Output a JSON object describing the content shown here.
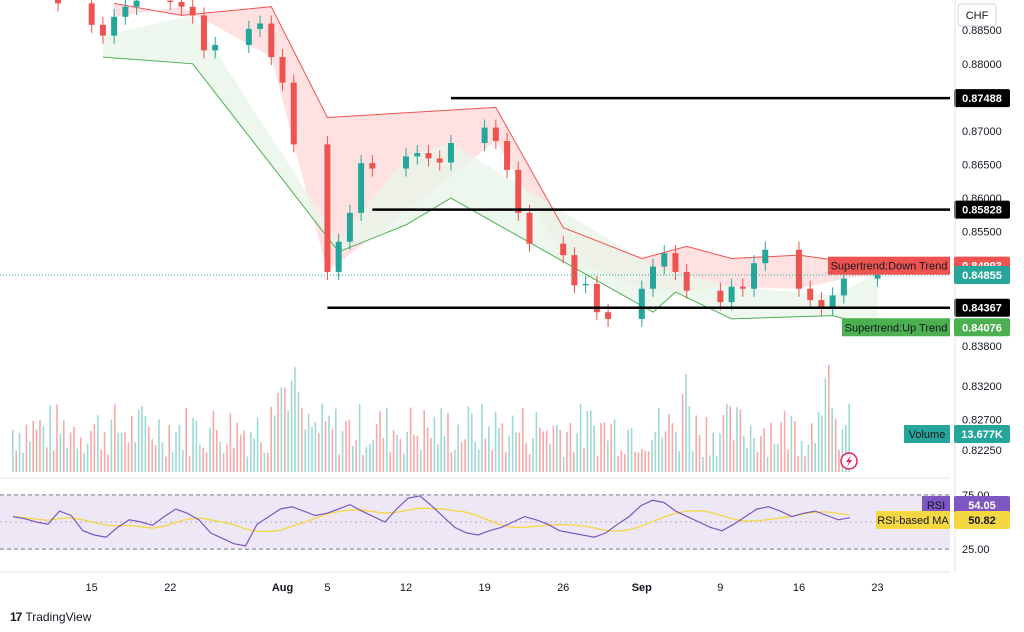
{
  "currency": "CHF",
  "brand": "TradingView",
  "colors": {
    "up": "#26a69a",
    "down": "#ef5350",
    "st_up_line": "#4caf50",
    "st_down_line": "#ef5350",
    "st_up_fill": "#e8f5e9",
    "st_down_fill": "#ffdada",
    "rsi": "#7e57c2",
    "rsi_ma": "#f5d742",
    "rsi_band": "#ede7f6",
    "hline": "#000000",
    "price_dotted": "#26a69a"
  },
  "price_axis": {
    "ticks": [
      "0.88500",
      "0.88000",
      "0.87000",
      "0.86500",
      "0.86000",
      "0.85500",
      "0.83800",
      "0.83200",
      "0.82700",
      "0.82250"
    ],
    "tick_values": [
      0.885,
      0.88,
      0.87,
      0.865,
      0.86,
      0.855,
      0.838,
      0.832,
      0.827,
      0.8225
    ]
  },
  "rsi_axis": {
    "ticks": [
      "75.00",
      "25.00"
    ],
    "tick_values": [
      75,
      25
    ]
  },
  "x_axis": {
    "labels": [
      "15",
      "22",
      "Aug",
      "5",
      "12",
      "19",
      "26",
      "Sep",
      "9",
      "16",
      "23"
    ],
    "bold": [
      "Aug",
      "Sep"
    ]
  },
  "horizontal_lines": [
    {
      "value": 0.87488,
      "label": "0.87488"
    },
    {
      "value": 0.85828,
      "label": "0.85828"
    },
    {
      "value": 0.84367,
      "label": "0.84367"
    }
  ],
  "tags": {
    "st_down": {
      "name": "Supertrend:Down Trend",
      "value": "0.84993"
    },
    "last_price": {
      "value": "0.84855"
    },
    "st_up": {
      "name": "Supertrend:Up Trend",
      "value": "0.84076"
    },
    "volume": {
      "name": "Volume",
      "value": "13.677K"
    },
    "rsi": {
      "name": "RSI",
      "value": "54.05"
    },
    "rsi_ma": {
      "name": "RSI-based MA",
      "value": "50.82"
    }
  },
  "chart_data": {
    "type": "candlestick",
    "symbol_currency": "CHF",
    "ylim": [
      0.8195,
      0.8895
    ],
    "x_range": [
      "2024-07-12",
      "2024-09-25"
    ],
    "candles_approx_close": [
      [
        "2024-07-12",
        0.889
      ],
      [
        "2024-07-15",
        0.8858
      ],
      [
        "2024-07-16",
        0.8842
      ],
      [
        "2024-07-17",
        0.887
      ],
      [
        "2024-07-18",
        0.8885
      ],
      [
        "2024-07-19",
        0.8894
      ],
      [
        "2024-07-22",
        0.8892
      ],
      [
        "2024-07-23",
        0.8885
      ],
      [
        "2024-07-24",
        0.8872
      ],
      [
        "2024-07-25",
        0.882
      ],
      [
        "2024-07-26",
        0.8828
      ],
      [
        "2024-07-29",
        0.8852
      ],
      [
        "2024-07-30",
        0.886
      ],
      [
        "2024-07-31",
        0.881
      ],
      [
        "2024-08-01",
        0.8772
      ],
      [
        "2024-08-02",
        0.868
      ],
      [
        "2024-08-05",
        0.849
      ],
      [
        "2024-08-06",
        0.8535
      ],
      [
        "2024-08-07",
        0.8578
      ],
      [
        "2024-08-08",
        0.8652
      ],
      [
        "2024-08-09",
        0.8644
      ],
      [
        "2024-08-12",
        0.8662
      ],
      [
        "2024-08-13",
        0.8667
      ],
      [
        "2024-08-14",
        0.8659
      ],
      [
        "2024-08-15",
        0.8653
      ],
      [
        "2024-08-16",
        0.8682
      ],
      [
        "2024-08-19",
        0.8705
      ],
      [
        "2024-08-20",
        0.8685
      ],
      [
        "2024-08-21",
        0.8642
      ],
      [
        "2024-08-22",
        0.8578
      ],
      [
        "2024-08-23",
        0.8532
      ],
      [
        "2024-08-26",
        0.8515
      ],
      [
        "2024-08-27",
        0.847
      ],
      [
        "2024-08-28",
        0.8472
      ],
      [
        "2024-08-29",
        0.843
      ],
      [
        "2024-08-30",
        0.842
      ],
      [
        "2024-09-02",
        0.8465
      ],
      [
        "2024-09-03",
        0.8498
      ],
      [
        "2024-09-04",
        0.8518
      ],
      [
        "2024-09-05",
        0.849
      ],
      [
        "2024-09-06",
        0.8462
      ],
      [
        "2024-09-09",
        0.8445
      ],
      [
        "2024-09-10",
        0.8468
      ],
      [
        "2024-09-11",
        0.8465
      ],
      [
        "2024-09-12",
        0.8503
      ],
      [
        "2024-09-13",
        0.8523
      ],
      [
        "2024-09-16",
        0.8465
      ],
      [
        "2024-09-17",
        0.8448
      ],
      [
        "2024-09-18",
        0.8437
      ],
      [
        "2024-09-19",
        0.8455
      ],
      [
        "2024-09-20",
        0.848
      ],
      [
        "2024-09-23",
        0.8486
      ]
    ],
    "supertrend_down": [
      [
        "2024-07-17",
        0.889
      ],
      [
        "2024-07-23",
        0.8872
      ],
      [
        "2024-07-31",
        0.8885
      ],
      [
        "2024-08-05",
        0.872
      ],
      [
        "2024-08-20",
        0.8735
      ],
      [
        "2024-08-26",
        0.8556
      ],
      [
        "2024-09-02",
        0.851
      ],
      [
        "2024-09-06",
        0.8528
      ],
      [
        "2024-09-10",
        0.851
      ],
      [
        "2024-09-16",
        0.8515
      ],
      [
        "2024-09-20",
        0.8506
      ],
      [
        "2024-09-23",
        0.84993
      ]
    ],
    "supertrend_up": [
      [
        "2024-07-16",
        0.881
      ],
      [
        "2024-07-24",
        0.88
      ],
      [
        "2024-08-06",
        0.852
      ],
      [
        "2024-08-12",
        0.856
      ],
      [
        "2024-08-16",
        0.86
      ],
      [
        "2024-09-03",
        0.843
      ],
      [
        "2024-09-05",
        0.846
      ],
      [
        "2024-09-10",
        0.842
      ],
      [
        "2024-09-19",
        0.8425
      ],
      [
        "2024-09-23",
        0.84076
      ]
    ],
    "horizontal_levels": [
      0.87488,
      0.85828,
      0.84367
    ],
    "last_price": 0.84855,
    "volume_last": "13.677K",
    "rsi": {
      "band": [
        25,
        75
      ],
      "ylim": [
        15,
        85
      ],
      "last": 54.05,
      "ma_last": 50.82,
      "values_approx": [
        55,
        53,
        50,
        48,
        60,
        56,
        42,
        38,
        36,
        45,
        52,
        50,
        47,
        55,
        62,
        58,
        52,
        40,
        35,
        30,
        28,
        48,
        55,
        62,
        64,
        60,
        56,
        58,
        62,
        66,
        60,
        55,
        50,
        62,
        72,
        74,
        65,
        55,
        45,
        40,
        38,
        42,
        45,
        50,
        55,
        52,
        48,
        42,
        40,
        38,
        36,
        40,
        48,
        55,
        65,
        70,
        68,
        60,
        55,
        50,
        45,
        42,
        48,
        55,
        62,
        64,
        60,
        55,
        58,
        60,
        56,
        52,
        54
      ]
    }
  }
}
